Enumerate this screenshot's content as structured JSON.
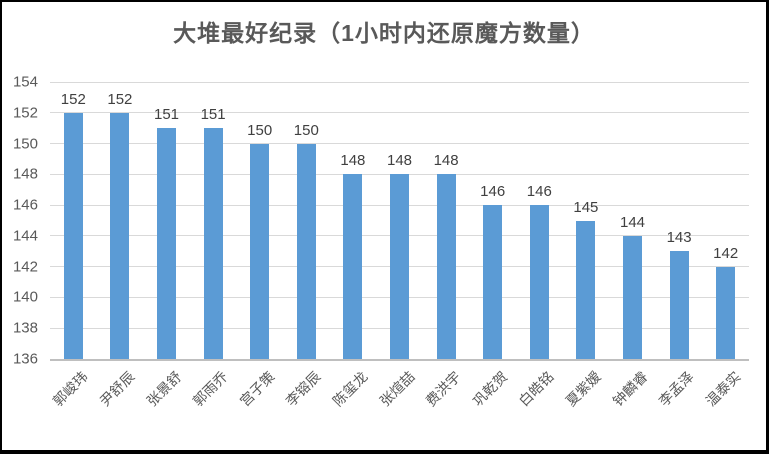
{
  "chart_data": {
    "type": "bar",
    "title": "大堆最好纪录（1小时内还原魔方数量）",
    "categories": [
      "郭峻玮",
      "尹舒辰",
      "张景舒",
      "郭雨乔",
      "宫子策",
      "李镕辰",
      "陈玺龙",
      "张煊喆",
      "费洪宇",
      "巩乾贺",
      "白皓铭",
      "夏紫嫒",
      "钟麟睿",
      "李孟泽",
      "温泰实"
    ],
    "values": [
      152,
      152,
      151,
      151,
      150,
      150,
      148,
      148,
      148,
      146,
      146,
      145,
      144,
      143,
      142
    ],
    "xlabel": "",
    "ylabel": "",
    "ylim": [
      136,
      154
    ],
    "ytick_step": 2,
    "yticks": [
      136,
      138,
      140,
      142,
      144,
      146,
      148,
      150,
      152,
      154
    ],
    "grid": true,
    "legend": "none",
    "value_labels_shown": true,
    "x_label_rotation_deg": 45,
    "bar_color": "#5B9BD5",
    "gridline_color": "#D9D9D9",
    "axis_line_color": "#BFBFBF",
    "tick_label_color": "#595959",
    "value_label_color": "#404040",
    "title_color": "#595959",
    "frame_border_color": "#000000"
  }
}
